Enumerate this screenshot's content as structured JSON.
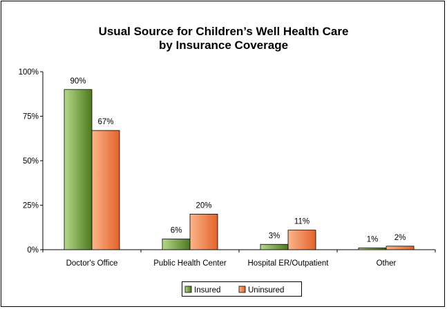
{
  "chart_data": {
    "type": "bar",
    "title_line1": "Usual Source for Children’s Well Health Care",
    "title_line2": "by Insurance Coverage",
    "categories": [
      "Doctor's Office",
      "Public Health Center",
      "Hospital ER/Outpatient",
      "Other"
    ],
    "series": [
      {
        "name": "Insured",
        "values": [
          90,
          6,
          3,
          1
        ],
        "labels": [
          "90%",
          "6%",
          "3%",
          "1%"
        ],
        "color_light": "#b5d88a",
        "color_dark": "#4e7a1e"
      },
      {
        "name": "Uninsured",
        "values": [
          67,
          20,
          11,
          2
        ],
        "labels": [
          "67%",
          "20%",
          "11%",
          "2%"
        ],
        "color_light": "#fbb68a",
        "color_dark": "#e2622b"
      }
    ],
    "y_ticks": [
      {
        "value": 0,
        "label": "0%"
      },
      {
        "value": 25,
        "label": "25%"
      },
      {
        "value": 50,
        "label": "50%"
      },
      {
        "value": 75,
        "label": "75%"
      },
      {
        "value": 100,
        "label": "100%"
      }
    ],
    "ylim": [
      0,
      100
    ],
    "grid": false,
    "legend_position": "bottom"
  }
}
